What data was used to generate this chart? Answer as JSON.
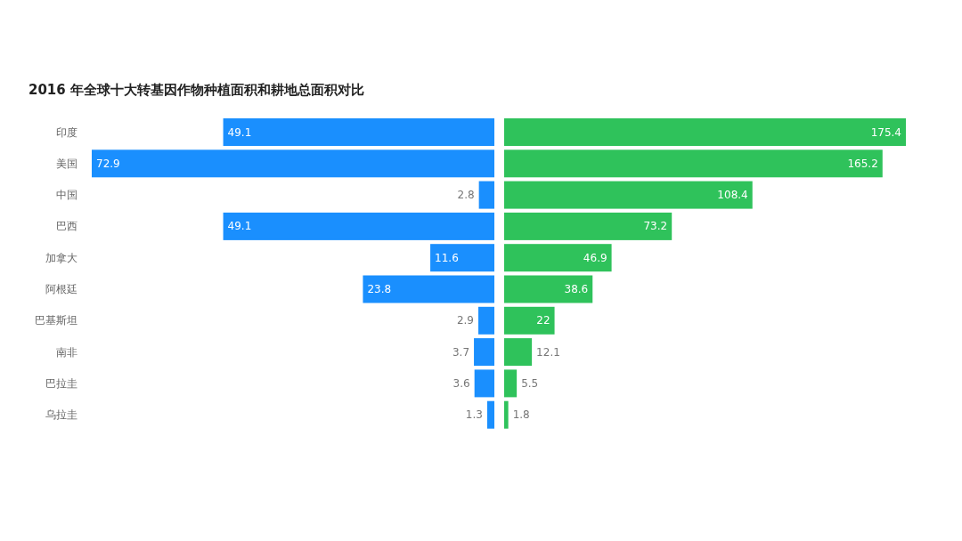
{
  "chart_data": [
    {
      "type": "bar",
      "orientation": "horizontal",
      "title": "2016 年全球十大转基因作物种植面积和耕地总面积对比",
      "categories": [
        "印度",
        "美国",
        "中国",
        "巴西",
        "加拿大",
        "阿根廷",
        "巴基斯坦",
        "南非",
        "巴拉圭",
        "乌拉圭"
      ],
      "values": [
        49.1,
        72.9,
        2.8,
        49.1,
        11.6,
        23.8,
        2.9,
        3.7,
        3.6,
        1.3
      ],
      "color": "#1a8ffe",
      "xlim": [
        72.9,
        0
      ],
      "data_labels": true,
      "tick_labels": "y",
      "grid": false
    },
    {
      "type": "bar",
      "orientation": "horizontal",
      "categories": [
        null,
        null,
        null,
        null,
        null,
        null,
        null,
        null,
        null,
        null
      ],
      "values": [
        175.4,
        165.2,
        108.4,
        73.2,
        46.9,
        38.6,
        22,
        12.1,
        5.5,
        1.8
      ],
      "color": "#2fc25b",
      "xlim": [
        0,
        175.4
      ],
      "data_labels": true,
      "tick_labels": false,
      "grid": false
    }
  ]
}
